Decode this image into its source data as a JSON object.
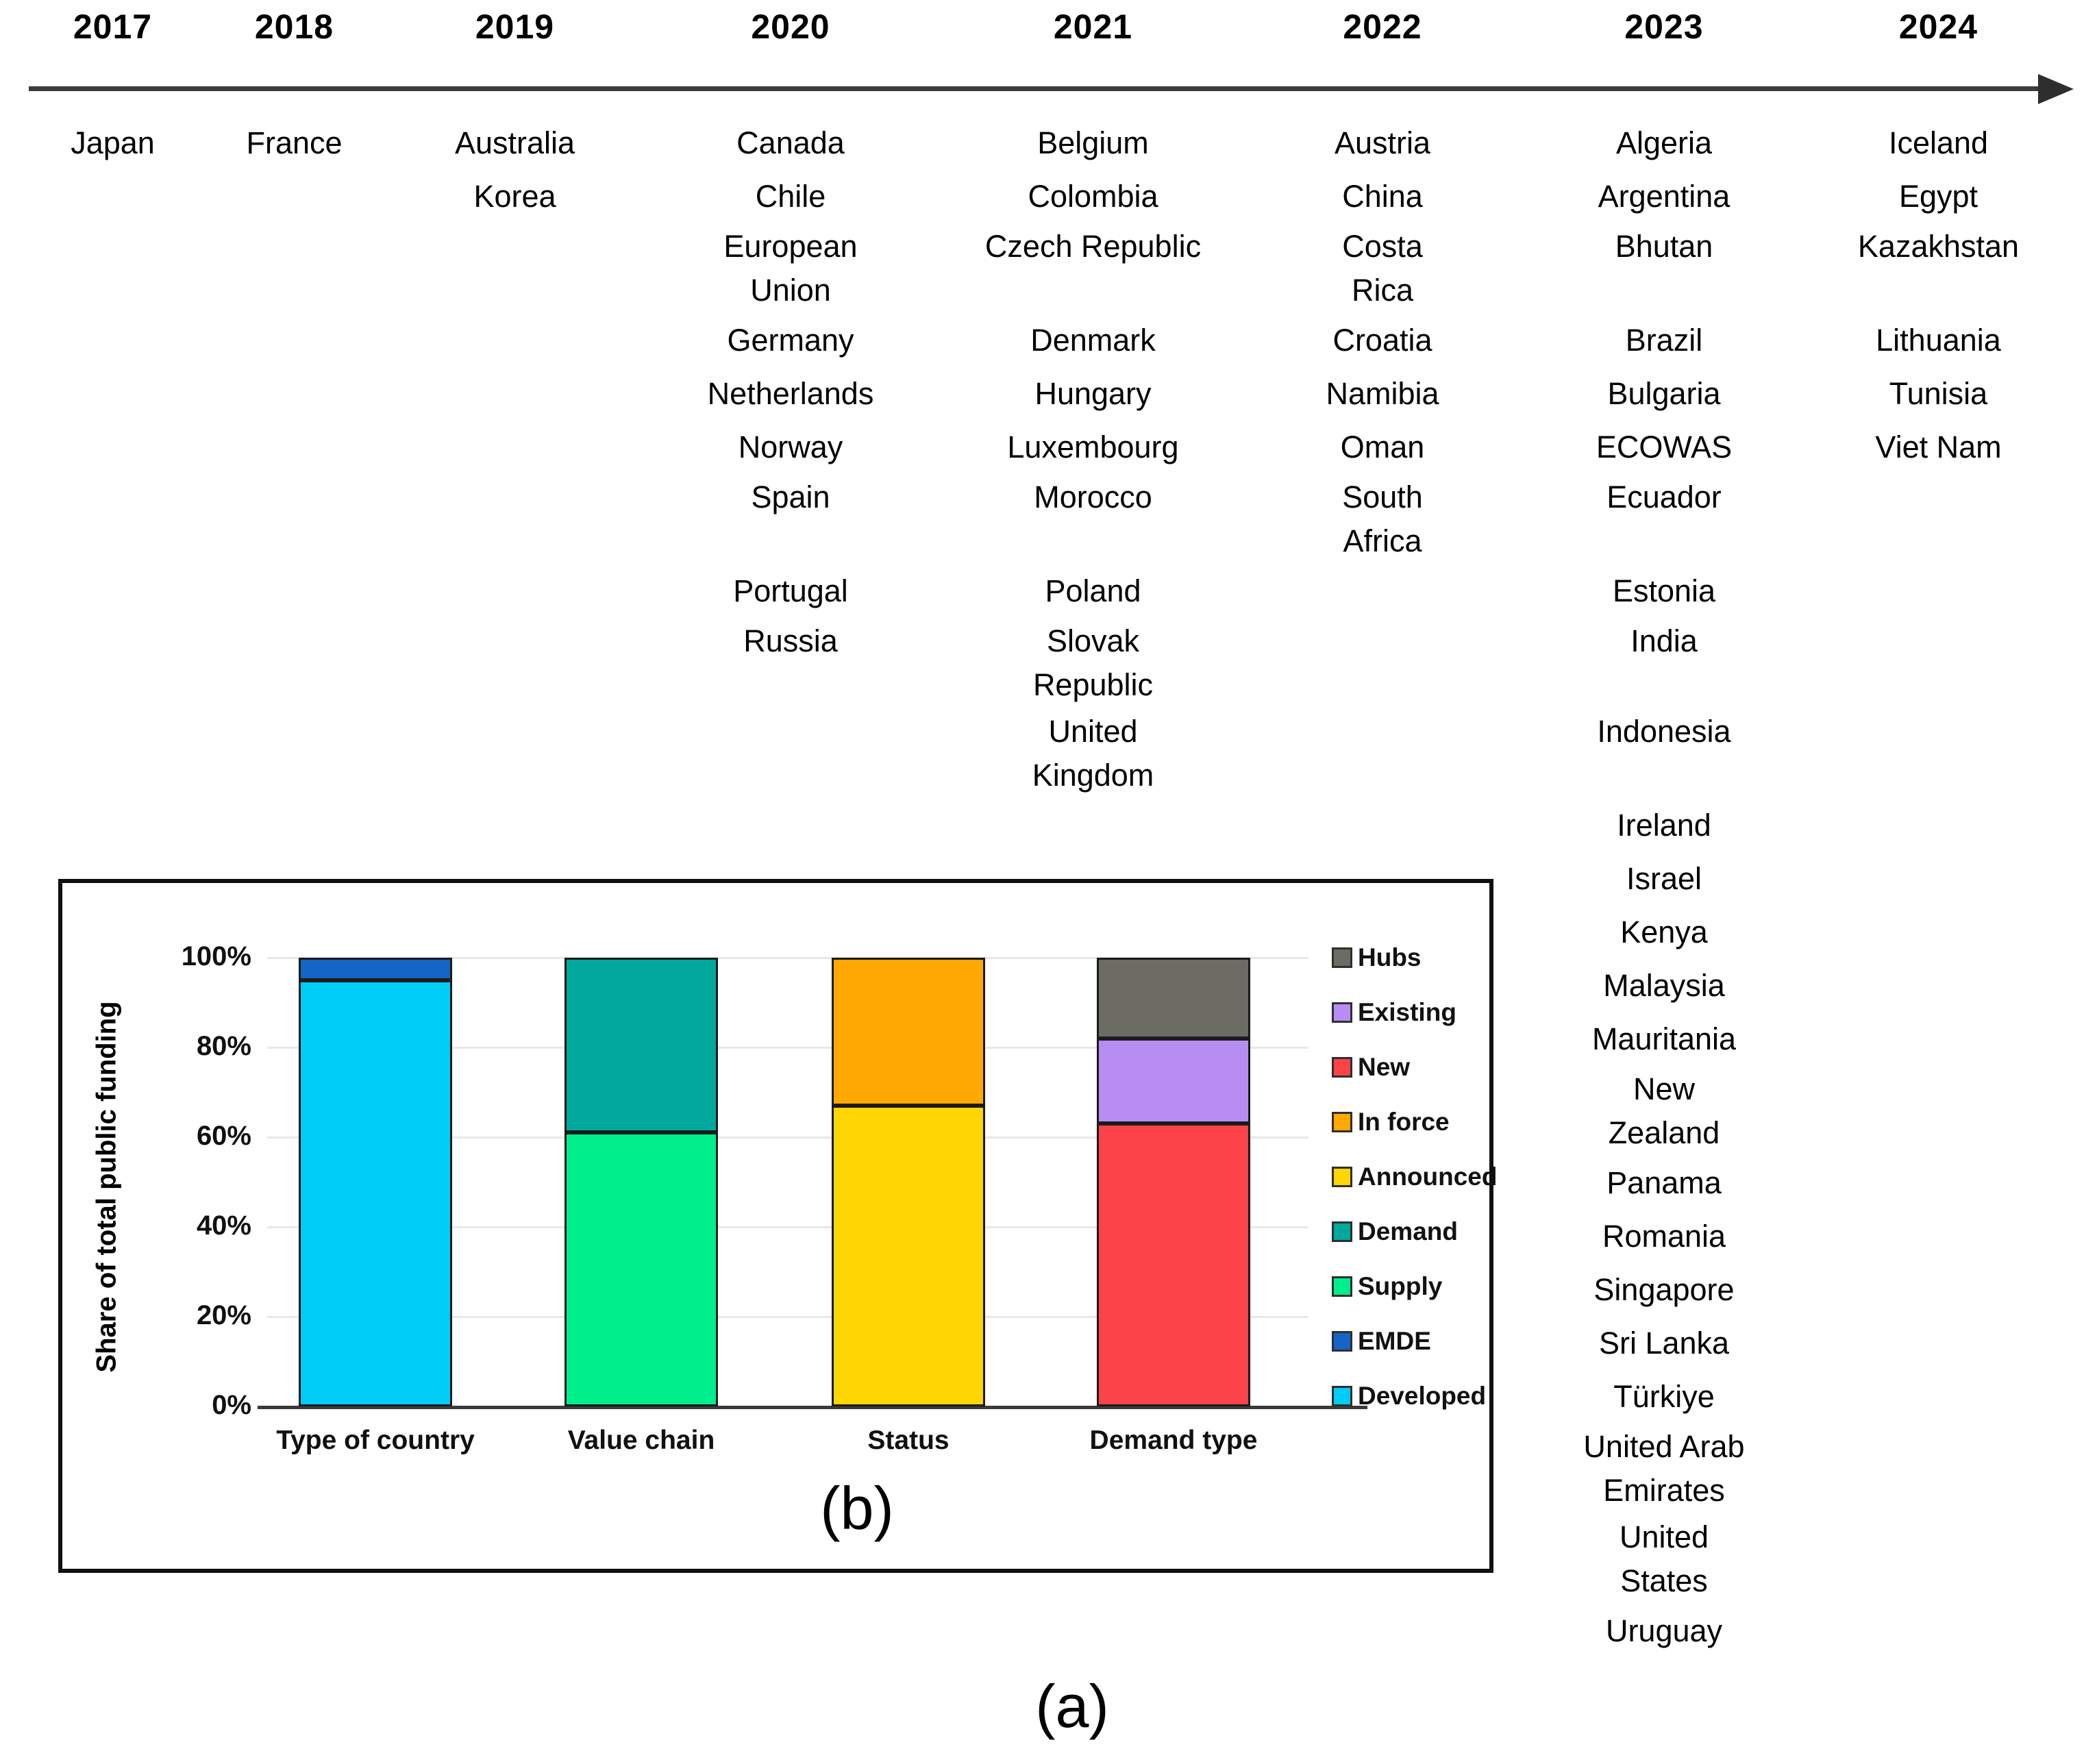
{
  "figure": {
    "panel_a_label": "(a)",
    "panel_b_label": "(b)"
  },
  "timeline": {
    "columns": [
      {
        "year": "2017",
        "entries": [
          {
            "row": 1,
            "text": "Japan"
          }
        ]
      },
      {
        "year": "2018",
        "entries": [
          {
            "row": 1,
            "text": "France"
          }
        ]
      },
      {
        "year": "2019",
        "entries": [
          {
            "row": 1,
            "text": "Australia"
          },
          {
            "row": 2,
            "text": "Korea"
          }
        ]
      },
      {
        "year": "2020",
        "entries": [
          {
            "row": 1,
            "text": "Canada"
          },
          {
            "row": 2,
            "text": "Chile"
          },
          {
            "row": 3,
            "text": "European\nUnion"
          },
          {
            "row": 4,
            "text": "Germany"
          },
          {
            "row": 5,
            "text": "Netherlands"
          },
          {
            "row": 6,
            "text": "Norway"
          },
          {
            "row": 7,
            "text": "Spain"
          },
          {
            "row": 8,
            "text": "Portugal"
          },
          {
            "row": 9,
            "text": "Russia"
          }
        ]
      },
      {
        "year": "2021",
        "entries": [
          {
            "row": 1,
            "text": "Belgium"
          },
          {
            "row": 2,
            "text": "Colombia"
          },
          {
            "row": 3,
            "text": "Czech Republic"
          },
          {
            "row": 4,
            "text": "Denmark"
          },
          {
            "row": 5,
            "text": "Hungary"
          },
          {
            "row": 6,
            "text": "Luxembourg"
          },
          {
            "row": 7,
            "text": "Morocco"
          },
          {
            "row": 8,
            "text": "Poland"
          },
          {
            "row": 9,
            "text": "Slovak\nRepublic"
          },
          {
            "row": 10,
            "text": "United\nKingdom"
          }
        ]
      },
      {
        "year": "2022",
        "entries": [
          {
            "row": 1,
            "text": "Austria"
          },
          {
            "row": 2,
            "text": "China"
          },
          {
            "row": 3,
            "text": "Costa\nRica"
          },
          {
            "row": 4,
            "text": "Croatia"
          },
          {
            "row": 5,
            "text": "Namibia"
          },
          {
            "row": 6,
            "text": "Oman"
          },
          {
            "row": 7,
            "text": "South\nAfrica"
          }
        ]
      },
      {
        "year": "2023",
        "entries": [
          {
            "row": 1,
            "text": "Algeria"
          },
          {
            "row": 2,
            "text": "Argentina"
          },
          {
            "row": 3,
            "text": "Bhutan"
          },
          {
            "row": 4,
            "text": "Brazil"
          },
          {
            "row": 5,
            "text": "Bulgaria"
          },
          {
            "row": 6,
            "text": "ECOWAS"
          },
          {
            "row": 7,
            "text": "Ecuador"
          },
          {
            "row": 8,
            "text": "Estonia"
          },
          {
            "row": 9,
            "text": "India"
          },
          {
            "row": 10,
            "text": "Indonesia"
          },
          {
            "row": 11,
            "text": "Ireland"
          },
          {
            "row": 12,
            "text": "Israel"
          },
          {
            "row": 13,
            "text": "Kenya"
          },
          {
            "row": 14,
            "text": "Malaysia"
          },
          {
            "row": 15,
            "text": "Mauritania"
          },
          {
            "row": 16,
            "text": "New\nZealand"
          },
          {
            "row": 17,
            "text": "Panama"
          },
          {
            "row": 18,
            "text": "Romania"
          },
          {
            "row": 19,
            "text": "Singapore"
          },
          {
            "row": 20,
            "text": "Sri Lanka"
          },
          {
            "row": 21,
            "text": "Türkiye"
          },
          {
            "row": 22,
            "text": "United Arab\nEmirates"
          },
          {
            "row": 23,
            "text": "United\nStates"
          },
          {
            "row": 24,
            "text": "Uruguay"
          }
        ]
      },
      {
        "year": "2024",
        "entries": [
          {
            "row": 1,
            "text": "Iceland"
          },
          {
            "row": 2,
            "text": "Egypt"
          },
          {
            "row": 3,
            "text": "Kazakhstan"
          },
          {
            "row": 4,
            "text": "Lithuania"
          },
          {
            "row": 5,
            "text": "Tunisia"
          },
          {
            "row": 6,
            "text": "Viet Nam"
          }
        ]
      }
    ]
  },
  "chart_data": {
    "type": "bar",
    "stacked": true,
    "title": "",
    "xlabel": "",
    "ylabel": "Share of total public funding",
    "ylim": [
      0,
      100
    ],
    "yticks": [
      "0%",
      "20%",
      "40%",
      "60%",
      "80%",
      "100%"
    ],
    "grid": true,
    "legend_position": "right",
    "categories": [
      "Type of country",
      "Value chain",
      "Status",
      "Demand type"
    ],
    "stacks": [
      {
        "category": "Type of country",
        "segments": [
          {
            "name": "Developed",
            "value": 95,
            "color": "#00CDF7"
          },
          {
            "name": "EMDE",
            "value": 5,
            "color": "#1565C6"
          }
        ]
      },
      {
        "category": "Value chain",
        "segments": [
          {
            "name": "Supply",
            "value": 61,
            "color": "#00EF8D"
          },
          {
            "name": "Demand",
            "value": 39,
            "color": "#00A99C"
          }
        ]
      },
      {
        "category": "Status",
        "segments": [
          {
            "name": "Announced",
            "value": 67,
            "color": "#FFD502"
          },
          {
            "name": "In force",
            "value": 33,
            "color": "#FFA802"
          }
        ]
      },
      {
        "category": "Demand type",
        "segments": [
          {
            "name": "New",
            "value": 63,
            "color": "#FC4349"
          },
          {
            "name": "Existing",
            "value": 19,
            "color": "#B78DF2"
          },
          {
            "name": "Hubs",
            "value": 18,
            "color": "#6C6C64"
          }
        ]
      }
    ],
    "legend": [
      {
        "label": "Hubs",
        "color": "#6C6C64"
      },
      {
        "label": "Existing",
        "color": "#B78DF2"
      },
      {
        "label": "New",
        "color": "#FC4349"
      },
      {
        "label": "In force",
        "color": "#FFA802"
      },
      {
        "label": "Announced",
        "color": "#FFD502"
      },
      {
        "label": "Demand",
        "color": "#00A99C"
      },
      {
        "label": "Supply",
        "color": "#00EF8D"
      },
      {
        "label": "EMDE",
        "color": "#1565C6"
      },
      {
        "label": "Developed",
        "color": "#00CDF7"
      }
    ]
  }
}
